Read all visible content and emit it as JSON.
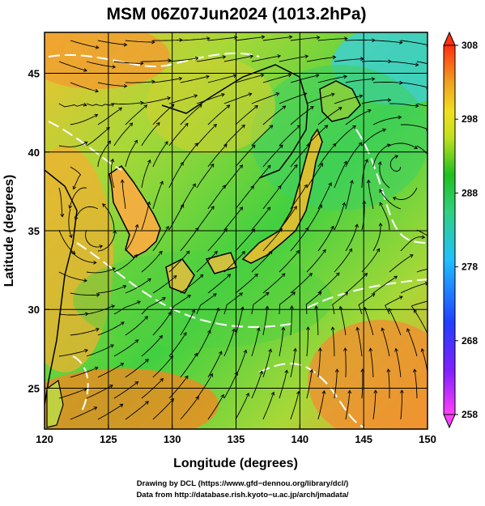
{
  "chart_data": {
    "type": "heatmap",
    "title": "MSM 06Z07Jun2024 (1013.2hPa)",
    "xlabel": "Longitude (degrees)",
    "ylabel": "Latitude  (degrees)",
    "xlim": [
      120,
      150
    ],
    "ylim": [
      22.4,
      47.6
    ],
    "x_ticks": [
      120,
      125,
      130,
      135,
      140,
      145,
      150
    ],
    "y_ticks": [
      25,
      30,
      35,
      40,
      45
    ],
    "grid": true,
    "colorbar": {
      "min": 258,
      "max": 308,
      "ticks": [
        258,
        268,
        278,
        288,
        298,
        308
      ],
      "placement": "right"
    },
    "field": "temperature with wind streamlines",
    "colors": {
      "cold": "#ff40ff",
      "cool": "#2050ff",
      "mid": "#30d0c0",
      "warm_green": "#20c020",
      "yellow": "#e0e020",
      "hot": "#ff3010"
    }
  },
  "credits": {
    "line1": "Drawing by DCL (https://www.gfd−dennou.org/library/dcl/)",
    "line2": "Data from http://database.rish.kyoto−u.ac.jp/arch/jmadata/"
  }
}
